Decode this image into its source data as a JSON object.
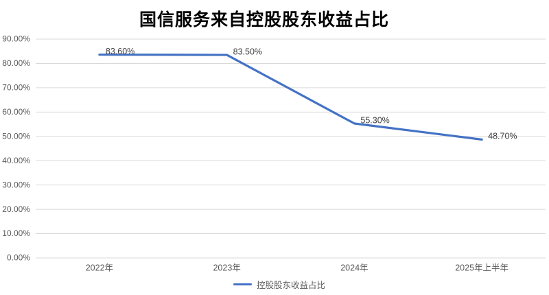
{
  "chart_data": {
    "type": "line",
    "title": "国信服务来自控股股东收益占比",
    "categories": [
      "2022年",
      "2023年",
      "2024年",
      "2025年上半年"
    ],
    "series": [
      {
        "name": "控股股东收益占比",
        "values": [
          83.6,
          83.5,
          55.3,
          48.7
        ]
      }
    ],
    "value_labels": [
      "83.60%",
      "83.50%",
      "55.30%",
      "48.70%"
    ],
    "xlabel": "",
    "ylabel": "",
    "ylim": [
      0,
      90
    ],
    "ytick_step": 10,
    "ytick_labels": [
      "0.00%",
      "10.00%",
      "20.00%",
      "30.00%",
      "40.00%",
      "50.00%",
      "60.00%",
      "70.00%",
      "80.00%",
      "90.00%"
    ],
    "grid": true,
    "legend_position": "bottom",
    "colors": {
      "line": "#4472C4",
      "grid": "#D9D9D9",
      "axis_labels": "#595959",
      "data_labels": "#404040",
      "title": "#000000"
    }
  }
}
